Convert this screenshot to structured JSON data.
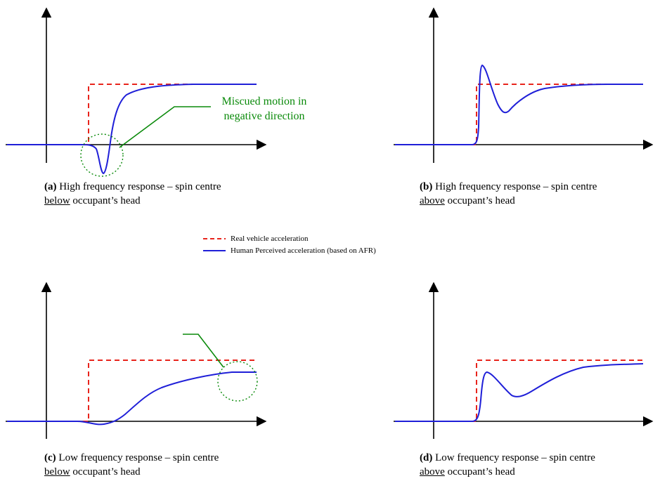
{
  "panels": [
    {
      "id": "a",
      "tag": "(a)",
      "caption": "High frequency response – spin centre",
      "underlined": "below",
      "rest": "occupant’s head"
    },
    {
      "id": "b",
      "tag": "(b)",
      "caption": "High frequency response – spin centre",
      "underlined": "above",
      "rest": "occupant’s head"
    },
    {
      "id": "c",
      "tag": "(c)",
      "caption": "Low frequency response – spin centre",
      "underlined": "below",
      "rest": "occupant’s head"
    },
    {
      "id": "d",
      "tag": "(d)",
      "caption": "Low frequency response – spin centre",
      "underlined": "above",
      "rest": "occupant’s head"
    }
  ],
  "annotation": {
    "line1": "Miscued motion in",
    "line2": "negative direction"
  },
  "legend": {
    "real": "Real vehicle acceleration",
    "perceived": "Human Perceived acceleration (based on AFR)"
  },
  "colors": {
    "real": "#e8241c",
    "perceived": "#1f1fd8",
    "annotation": "#0a8a0a",
    "axis": "#000000"
  }
}
